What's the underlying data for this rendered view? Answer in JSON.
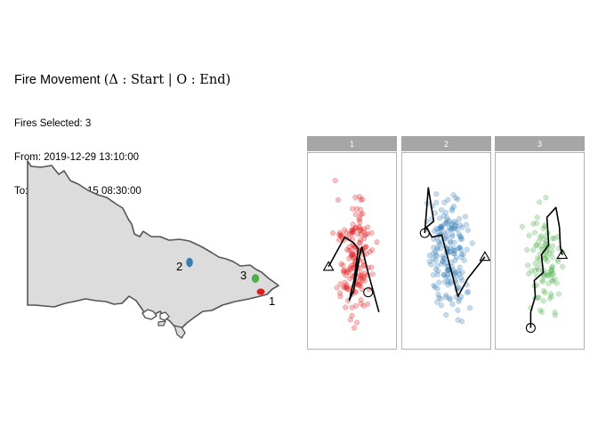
{
  "header": {
    "title_prefix": "Fire Movement",
    "start_symbol": "Δ",
    "start_word": "Start",
    "end_symbol": "O",
    "end_word": "End",
    "fires_selected_label": "Fires Selected:",
    "fires_selected_value": "3",
    "from_label": "From:",
    "from_value": "2019-12-29 13:10:00",
    "to_label": "To:",
    "to_value": "2020-01-15 08:30:00"
  },
  "colors": {
    "fire_1": "#e41a1c",
    "fire_2": "#377eb8",
    "fire_3": "#4daf4a",
    "map_fill": "#dcdcdc",
    "map_stroke": "#555555",
    "strip_bg": "#a6a6a6",
    "panel_border": "#b3b3b3"
  },
  "chart_data": [
    {
      "type": "map",
      "region": "Victoria, Australia",
      "markers": [
        {
          "label": "1",
          "color": "#e41a1c"
        },
        {
          "label": "2",
          "color": "#377eb8"
        },
        {
          "label": "3",
          "color": "#4daf4a"
        }
      ]
    },
    {
      "type": "scatter",
      "facets": [
        "1",
        "2",
        "3"
      ],
      "axes": "none",
      "start_marker": "triangle",
      "end_marker": "circle",
      "series": [
        {
          "name": "1",
          "color": "#e41a1c",
          "point_count": 170
        },
        {
          "name": "2",
          "color": "#377eb8",
          "point_count": 190
        },
        {
          "name": "3",
          "color": "#4daf4a",
          "point_count": 100
        }
      ]
    }
  ]
}
